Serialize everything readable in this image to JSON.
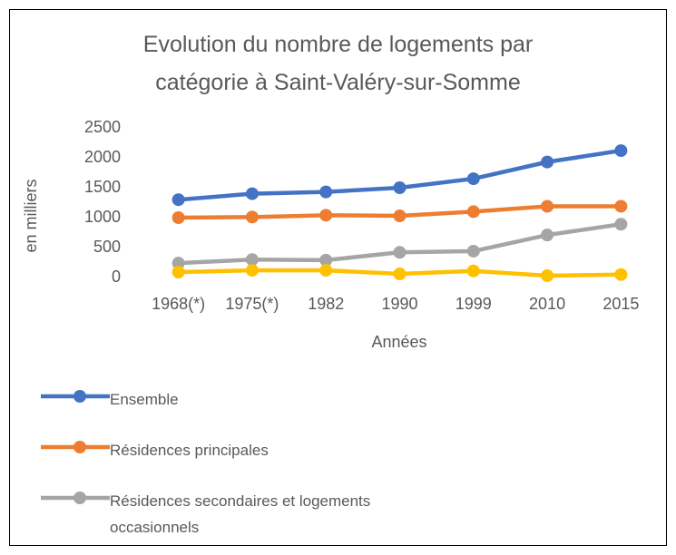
{
  "chart_data": {
    "type": "line",
    "title": "Evolution du nombre de logements par catégorie à Saint-Valéry-sur-Somme",
    "xlabel": "Années",
    "ylabel": "en milliers",
    "categories": [
      "1968(*)",
      "1975(*)",
      "1982",
      "1990",
      "1999",
      "2010",
      "2015"
    ],
    "series": [
      {
        "name": "Ensemble",
        "color": "#4472c4",
        "values": [
          1300,
          1400,
          1430,
          1500,
          1650,
          1930,
          2120
        ]
      },
      {
        "name": "Résidences principales",
        "color": "#ed7d31",
        "values": [
          1000,
          1010,
          1040,
          1030,
          1100,
          1190,
          1190
        ]
      },
      {
        "name": "Résidences secondaires et logements occasionnels",
        "color": "#a5a5a5",
        "values": [
          240,
          300,
          290,
          420,
          440,
          710,
          890
        ]
      },
      {
        "color": "#ffc000",
        "values": [
          90,
          120,
          120,
          60,
          110,
          30,
          50
        ]
      }
    ],
    "ylim": [
      0,
      2500
    ],
    "yticks": [
      0,
      500,
      1000,
      1500,
      2000,
      2500
    ],
    "grid": false,
    "legend": "bottom"
  }
}
